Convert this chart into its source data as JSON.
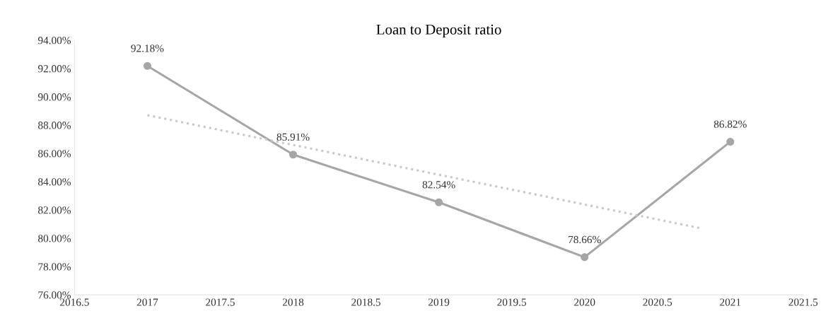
{
  "chart_data": {
    "type": "line",
    "title": "Loan to Deposit ratio",
    "x": [
      2017,
      2018,
      2019,
      2020,
      2021
    ],
    "series": [
      {
        "color": "#a6a6a6",
        "values": [
          92.18,
          85.91,
          82.54,
          78.66,
          86.82
        ],
        "marker": "circle",
        "line_style": "solid",
        "value_labels": [
          "92.18%",
          "85.91%",
          "82.54%",
          "78.66%",
          "86.82%"
        ]
      },
      {
        "color": "#c8c8c8",
        "x": [
          2017,
          2020.8
        ],
        "values": [
          88.7,
          80.7
        ],
        "marker": "none",
        "line_style": "dotted"
      }
    ],
    "xlim": [
      2016.5,
      2021.5
    ],
    "xticks": [
      2016.5,
      2017,
      2017.5,
      2018,
      2018.5,
      2019,
      2019.5,
      2020,
      2020.5,
      2021,
      2021.5
    ],
    "ylim": [
      76,
      94
    ],
    "yticks": [
      {
        "value": 76,
        "label": "76.00%"
      },
      {
        "value": 78,
        "label": "78.00%"
      },
      {
        "value": 80,
        "label": "80.00%"
      },
      {
        "value": 82,
        "label": "82.00%"
      },
      {
        "value": 84,
        "label": "84.00%"
      },
      {
        "value": 86,
        "label": "86.00%"
      },
      {
        "value": 88,
        "label": "88.00%"
      },
      {
        "value": 90,
        "label": "90.00%"
      },
      {
        "value": 92,
        "label": "92.00%"
      },
      {
        "value": 94,
        "label": "94.00%"
      }
    ],
    "grid": false,
    "legend": false
  }
}
